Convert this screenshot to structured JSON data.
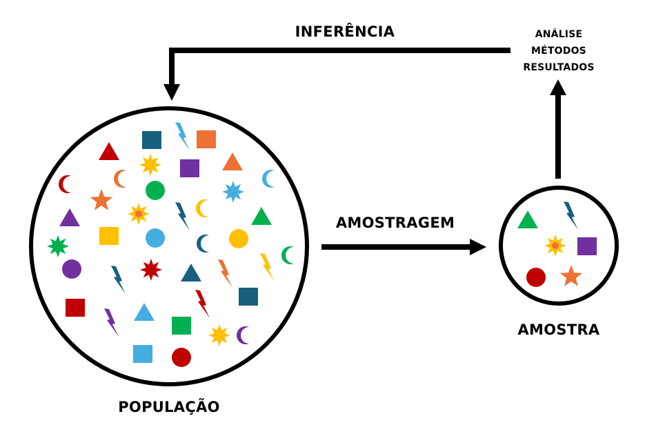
{
  "labels": {
    "inference": "INFERÊNCIA",
    "sampling": "AMOSTRAGEM",
    "sample": "AMOSTRA",
    "population": "POPULAÇÃO",
    "analysis": [
      "ANÁLISE",
      "MÉTODOS",
      "RESULTADOS"
    ]
  },
  "colors": {
    "navy": "#17607f",
    "orange": "#ec7133",
    "skyblue": "#46ade0",
    "red": "#c00000",
    "purple": "#7030a0",
    "green": "#00b050",
    "yellow": "#ffc000",
    "ink": "#000000"
  },
  "population_items": [
    {
      "shape": "triangle",
      "color": "red"
    },
    {
      "shape": "square",
      "color": "navy"
    },
    {
      "shape": "bolt",
      "color": "skyblue"
    },
    {
      "shape": "square",
      "color": "orange"
    },
    {
      "shape": "moon",
      "color": "orange"
    },
    {
      "shape": "burst",
      "color": "yellow"
    },
    {
      "shape": "square",
      "color": "purple"
    },
    {
      "shape": "triangle",
      "color": "orange"
    },
    {
      "shape": "moon",
      "color": "red"
    },
    {
      "shape": "circle",
      "color": "green"
    },
    {
      "shape": "burst",
      "color": "skyblue"
    },
    {
      "shape": "moon",
      "color": "skyblue"
    },
    {
      "shape": "star",
      "color": "orange"
    },
    {
      "shape": "sun",
      "color": "yellow"
    },
    {
      "shape": "bolt",
      "color": "navy"
    },
    {
      "shape": "moon",
      "color": "yellow"
    },
    {
      "shape": "triangle",
      "color": "purple"
    },
    {
      "shape": "triangle",
      "color": "green"
    },
    {
      "shape": "square",
      "color": "yellow"
    },
    {
      "shape": "circle",
      "color": "skyblue"
    },
    {
      "shape": "moon",
      "color": "navy"
    },
    {
      "shape": "circle",
      "color": "yellow"
    },
    {
      "shape": "burst",
      "color": "green"
    },
    {
      "shape": "moon",
      "color": "green"
    },
    {
      "shape": "circle",
      "color": "purple"
    },
    {
      "shape": "bolt",
      "color": "navy"
    },
    {
      "shape": "burst",
      "color": "red"
    },
    {
      "shape": "triangle",
      "color": "navy"
    },
    {
      "shape": "bolt",
      "color": "orange"
    },
    {
      "shape": "bolt",
      "color": "yellow"
    },
    {
      "shape": "bolt",
      "color": "red"
    },
    {
      "shape": "square",
      "color": "navy"
    },
    {
      "shape": "square",
      "color": "red"
    },
    {
      "shape": "bolt",
      "color": "purple"
    },
    {
      "shape": "triangle",
      "color": "skyblue"
    },
    {
      "shape": "square",
      "color": "green"
    },
    {
      "shape": "burst",
      "color": "yellow"
    },
    {
      "shape": "moon",
      "color": "purple"
    },
    {
      "shape": "square",
      "color": "skyblue"
    },
    {
      "shape": "circle",
      "color": "red"
    }
  ],
  "sample_items": [
    {
      "shape": "triangle",
      "color": "green"
    },
    {
      "shape": "bolt",
      "color": "navy"
    },
    {
      "shape": "sun",
      "color": "yellow"
    },
    {
      "shape": "square",
      "color": "purple"
    },
    {
      "shape": "circle",
      "color": "red"
    },
    {
      "shape": "star",
      "color": "orange"
    }
  ]
}
